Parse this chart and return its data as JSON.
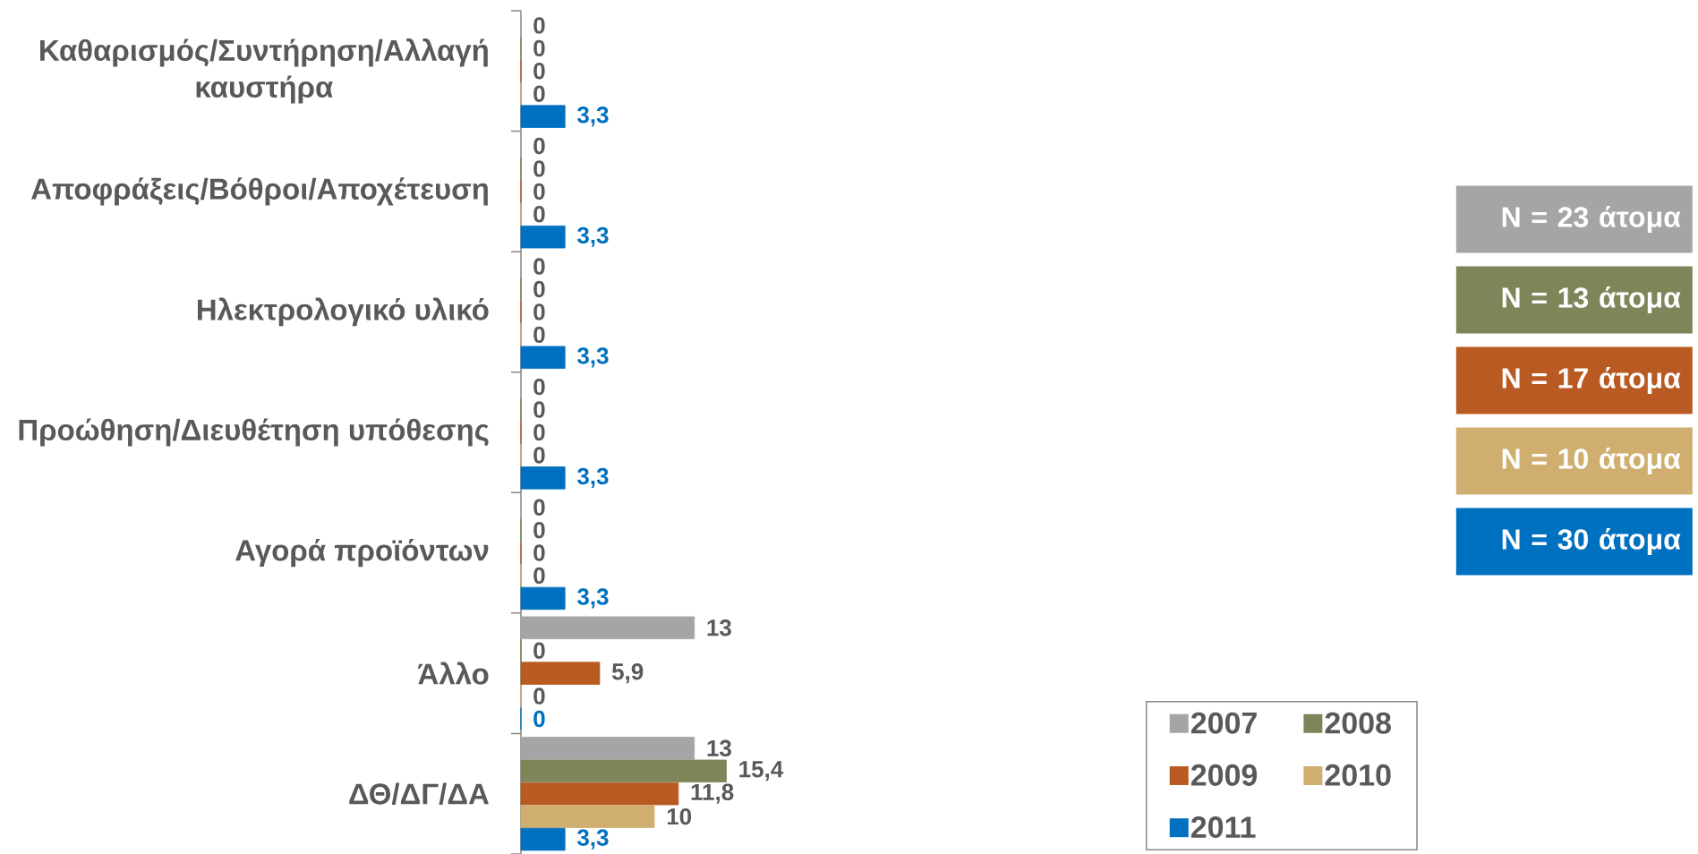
{
  "chart_data": {
    "type": "bar",
    "orientation": "horizontal",
    "categories": [
      "Καθαρισμός/Συντήρηση/Αλλαγή καυστήρα",
      "Αποφράξεις/Βόθροι/Αποχέτευση",
      "Ηλεκτρολογικό υλικό",
      "Προώθηση/Διευθέτηση υπόθεσης",
      "Αγορά προϊόντων",
      "Άλλο",
      "ΔΘ/ΔΓ/ΔΑ"
    ],
    "series": [
      {
        "name": "2007",
        "color": "#a5a5a5",
        "values": [
          0,
          0,
          0,
          0,
          0,
          13,
          13
        ],
        "value_labels": [
          "0",
          "0",
          "0",
          "0",
          "0",
          "13",
          "13"
        ]
      },
      {
        "name": "2008",
        "color": "#7f8558",
        "values": [
          0,
          0,
          0,
          0,
          0,
          0,
          15.4
        ],
        "value_labels": [
          "0",
          "0",
          "0",
          "0",
          "0",
          "0",
          "15,4"
        ]
      },
      {
        "name": "2009",
        "color": "#b85a22",
        "values": [
          0,
          0,
          0,
          0,
          0,
          5.9,
          11.8
        ],
        "value_labels": [
          "0",
          "0",
          "0",
          "0",
          "0",
          "5,9",
          "11,8"
        ]
      },
      {
        "name": "2010",
        "color": "#cfae6f",
        "values": [
          0,
          0,
          0,
          0,
          0,
          0,
          10
        ],
        "value_labels": [
          "0",
          "0",
          "0",
          "0",
          "0",
          "0",
          "10"
        ]
      },
      {
        "name": "2011",
        "color": "#0070c0",
        "values": [
          3.3,
          3.3,
          3.3,
          3.3,
          3.3,
          0,
          3.3
        ],
        "value_labels": [
          "3,3",
          "3,3",
          "3,3",
          "3,3",
          "3,3",
          "0",
          "3,3"
        ]
      }
    ],
    "tick_labels": "y",
    "legend": "bottom right",
    "annotations": [
      "N = 23 άτομα",
      "N = 13 άτομα",
      "N = 17 άτομα",
      "N = 10 άτομα",
      "N = 30 άτομα"
    ]
  }
}
